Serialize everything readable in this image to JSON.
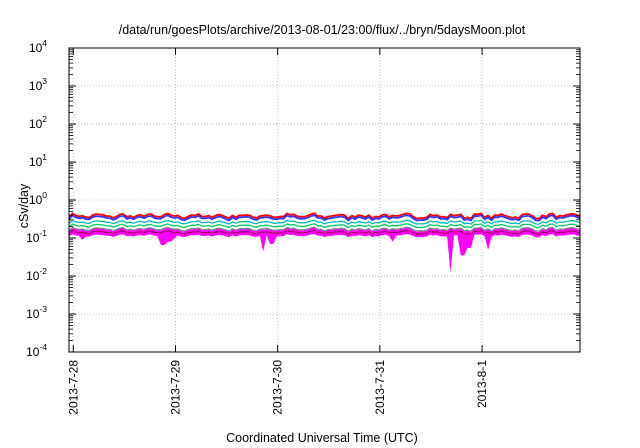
{
  "chart_data": {
    "type": "area",
    "title": "/data/run/goesPlots/archive/2013-08-01/23:00/flux/../bryn/5daysMoon.plot",
    "xlabel": "Coordinated Universal Time (UTC)",
    "ylabel": "cSv/day",
    "y_scale": "log",
    "ylim": [
      0.0001,
      10000
    ],
    "xlim": [
      "2013-07-27T23:00",
      "2013-08-01T23:00"
    ],
    "grid": true,
    "y_ticks": [
      {
        "base": "10",
        "exp": "-4"
      },
      {
        "base": "10",
        "exp": "-3"
      },
      {
        "base": "10",
        "exp": "-2"
      },
      {
        "base": "10",
        "exp": "-1"
      },
      {
        "base": "10",
        "exp": "0"
      },
      {
        "base": "10",
        "exp": "1"
      },
      {
        "base": "10",
        "exp": "2"
      },
      {
        "base": "10",
        "exp": "3"
      },
      {
        "base": "10",
        "exp": "4"
      }
    ],
    "x_ticks": [
      {
        "label": "2013-7-28",
        "date": "2013-07-28T00:00"
      },
      {
        "label": "2013-7-29",
        "date": "2013-07-29T00:00"
      },
      {
        "label": "2013-7-30",
        "date": "2013-07-30T00:00"
      },
      {
        "label": "2013-7-31",
        "date": "2013-07-31T00:00"
      },
      {
        "label": "2013-8-1",
        "date": "2013-08-01T00:00"
      }
    ],
    "colors": {
      "fill": "#ff00ff",
      "series": [
        "#ff0000",
        "#3333ff",
        "#00bbbb",
        "#00cc66",
        "#888888",
        "#aa0066"
      ]
    },
    "series": [
      {
        "color": "#ff0000",
        "level": 0.38
      },
      {
        "color": "#3333ff",
        "level": 0.35
      },
      {
        "color": "#00bbbb",
        "level": 0.26
      },
      {
        "color": "#00cc66",
        "level": 0.21
      },
      {
        "color": "#888888",
        "level": 0.17
      },
      {
        "color": "#aa0066",
        "level": 0.14
      }
    ],
    "dips": [
      {
        "date": "2013-07-28T02:00",
        "value": 0.09
      },
      {
        "date": "2013-07-28T21:00",
        "value": 0.065
      },
      {
        "date": "2013-07-28T22:30",
        "value": 0.08
      },
      {
        "date": "2013-07-29T00:00",
        "value": 0.1
      },
      {
        "date": "2013-07-29T20:30",
        "value": 0.045
      },
      {
        "date": "2013-07-29T22:30",
        "value": 0.07
      },
      {
        "date": "2013-07-31T03:00",
        "value": 0.08
      },
      {
        "date": "2013-07-31T16:30",
        "value": 0.013
      },
      {
        "date": "2013-07-31T19:30",
        "value": 0.035
      },
      {
        "date": "2013-07-31T21:00",
        "value": 0.055
      },
      {
        "date": "2013-08-01T01:30",
        "value": 0.05
      }
    ]
  }
}
